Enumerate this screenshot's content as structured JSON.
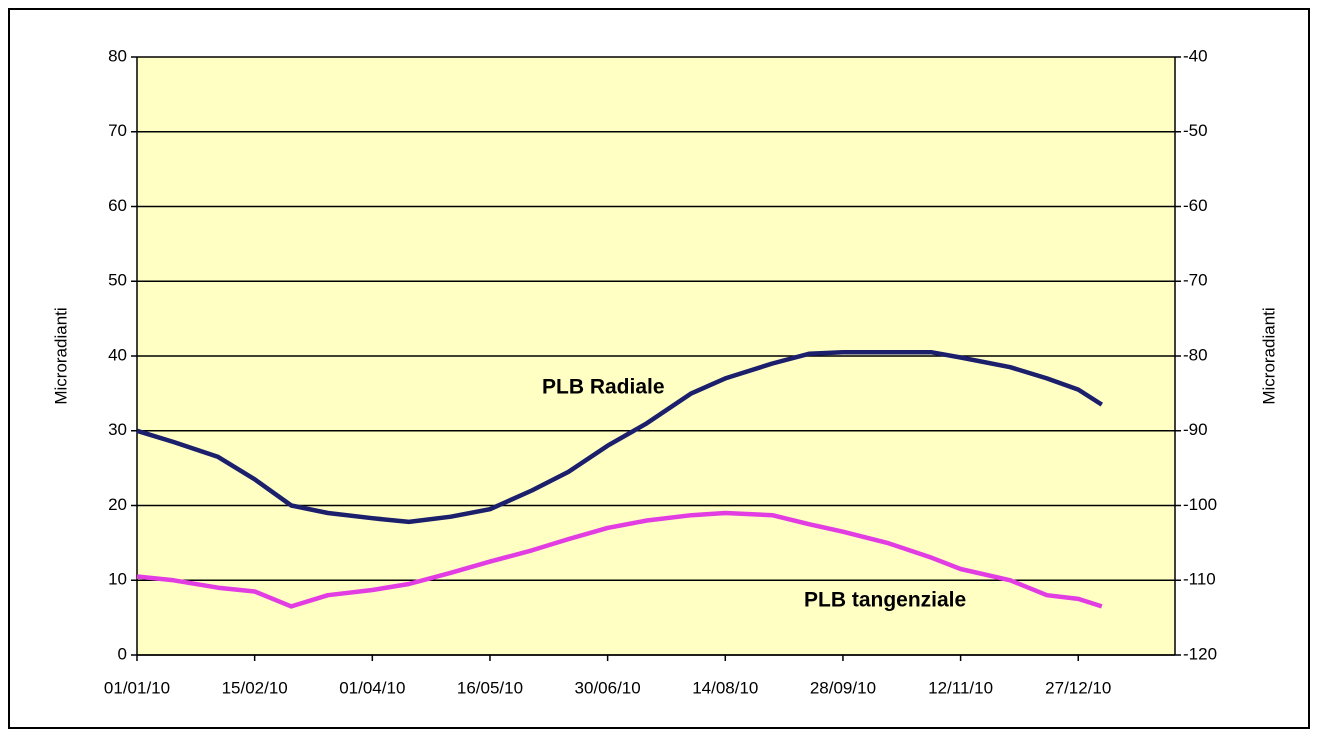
{
  "chart_data": {
    "type": "line",
    "ylabel": "Microradianti",
    "y2label": "Microradianti",
    "x": [
      "01/01/10",
      "15/01/10",
      "01/02/10",
      "15/02/10",
      "01/03/10",
      "15/03/10",
      "01/04/10",
      "15/04/10",
      "01/05/10",
      "16/05/10",
      "01/06/10",
      "15/06/10",
      "30/06/10",
      "15/07/10",
      "01/08/10",
      "14/08/10",
      "01/09/10",
      "15/09/10",
      "28/09/10",
      "15/10/10",
      "01/11/10",
      "12/11/10",
      "01/12/10",
      "15/12/10",
      "27/12/10",
      "05/01/11"
    ],
    "series": [
      {
        "name": "PLB Radiale",
        "color": "#1c1f6b",
        "axis": "y",
        "values": [
          30,
          28.5,
          26.5,
          23.5,
          20,
          19,
          18.3,
          17.8,
          18.5,
          19.5,
          22,
          24.5,
          28,
          31,
          35,
          37,
          39,
          40.3,
          40.5,
          40.5,
          40.5,
          39.8,
          38.5,
          37,
          35.5,
          33.5
        ]
      },
      {
        "name": "PLB tangenziale",
        "color": "#e23de2",
        "axis": "y2",
        "values": [
          -109.5,
          -110,
          -111,
          -111.5,
          -113.5,
          -112,
          -111.3,
          -110.5,
          -109,
          -107.5,
          -106,
          -104.5,
          -103,
          -102,
          -101.3,
          -101,
          -101.3,
          -102.5,
          -103.5,
          -105,
          -107,
          -108.5,
          -110,
          -112,
          -112.5,
          -113.5
        ]
      }
    ],
    "xlim": [
      "01/01/10",
      "02/02/11"
    ],
    "xticks": [
      "01/01/10",
      "15/02/10",
      "01/04/10",
      "16/05/10",
      "30/06/10",
      "14/08/10",
      "28/09/10",
      "12/11/10",
      "27/12/10"
    ],
    "ylim": [
      0,
      80
    ],
    "yticks": [
      0,
      10,
      20,
      30,
      40,
      50,
      60,
      70,
      80
    ],
    "y2lim": [
      -120,
      -40
    ],
    "y2ticks": [
      -120,
      -110,
      -100,
      -90,
      -80,
      -70,
      -60,
      -50,
      -40
    ],
    "grid": true,
    "background": "#ffffc4"
  }
}
